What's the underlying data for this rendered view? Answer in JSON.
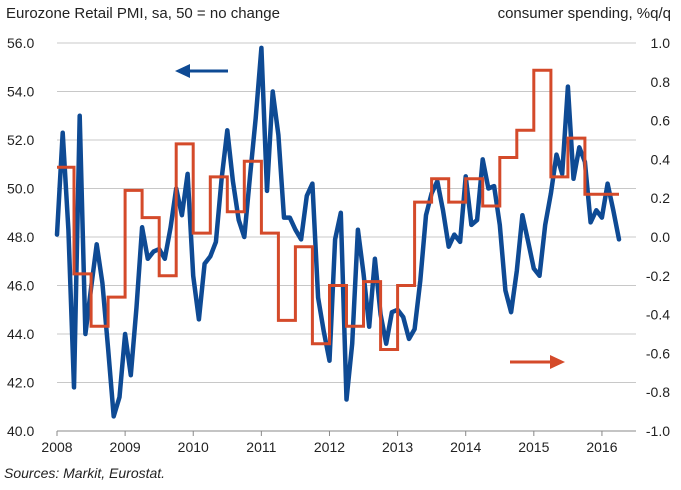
{
  "chart_data": {
    "type": "line",
    "title_left": "Eurozone Retail PMI, sa, 50 = no change",
    "title_right": "consumer spending, %q/q",
    "source": "Sources: Markit, Eurostat.",
    "x_ticks": [
      "2008",
      "2009",
      "2010",
      "2011",
      "2012",
      "2013",
      "2014",
      "2015",
      "2016"
    ],
    "xlim": [
      2008,
      2016.5
    ],
    "y_left": {
      "lim": [
        40,
        56
      ],
      "ticks": [
        40,
        42,
        44,
        46,
        48,
        50,
        52,
        54,
        56
      ],
      "tick_labels": [
        "40.0",
        "42.0",
        "44.0",
        "46.0",
        "48.0",
        "50.0",
        "52.0",
        "54.0",
        "56.0"
      ]
    },
    "y_right": {
      "lim": [
        -1.0,
        1.0
      ],
      "ticks": [
        -1.0,
        -0.8,
        -0.6,
        -0.4,
        -0.2,
        0.0,
        0.2,
        0.4,
        0.6,
        0.8,
        1.0
      ],
      "tick_labels": [
        "-1.0",
        "-0.8",
        "-0.6",
        "-0.4",
        "-0.2",
        "0.0",
        "0.2",
        "0.4",
        "0.6",
        "0.8",
        "1.0"
      ]
    },
    "series": [
      {
        "name": "Eurozone Retail PMI",
        "axis": "left",
        "color": "#0e4a94",
        "x": [
          2008.0,
          2008.083,
          2008.167,
          2008.25,
          2008.333,
          2008.417,
          2008.5,
          2008.583,
          2008.667,
          2008.75,
          2008.833,
          2008.917,
          2009.0,
          2009.083,
          2009.167,
          2009.25,
          2009.333,
          2009.417,
          2009.5,
          2009.583,
          2009.667,
          2009.75,
          2009.833,
          2009.917,
          2010.0,
          2010.083,
          2010.167,
          2010.25,
          2010.333,
          2010.417,
          2010.5,
          2010.583,
          2010.667,
          2010.75,
          2010.833,
          2010.917,
          2011.0,
          2011.083,
          2011.167,
          2011.25,
          2011.333,
          2011.417,
          2011.5,
          2011.583,
          2011.667,
          2011.75,
          2011.833,
          2011.917,
          2012.0,
          2012.083,
          2012.167,
          2012.25,
          2012.333,
          2012.417,
          2012.5,
          2012.583,
          2012.667,
          2012.75,
          2012.833,
          2012.917,
          2013.0,
          2013.083,
          2013.167,
          2013.25,
          2013.333,
          2013.417,
          2013.5,
          2013.583,
          2013.667,
          2013.75,
          2013.833,
          2013.917,
          2014.0,
          2014.083,
          2014.167,
          2014.25,
          2014.333,
          2014.417,
          2014.5,
          2014.583,
          2014.667,
          2014.75,
          2014.833,
          2014.917,
          2015.0,
          2015.083,
          2015.167,
          2015.25,
          2015.333,
          2015.417,
          2015.5,
          2015.583,
          2015.667,
          2015.75,
          2015.833,
          2015.917,
          2016.0,
          2016.083,
          2016.167,
          2016.25
        ],
        "values": [
          48.1,
          52.3,
          48.3,
          41.8,
          53.0,
          44.0,
          45.9,
          47.7,
          46.1,
          43.4,
          40.6,
          41.4,
          44.0,
          42.3,
          45.1,
          48.4,
          47.1,
          47.4,
          47.5,
          47.1,
          48.4,
          50.0,
          48.9,
          50.6,
          46.4,
          44.6,
          46.9,
          47.2,
          47.8,
          50.4,
          52.4,
          50.3,
          48.7,
          48.0,
          50.5,
          52.9,
          55.8,
          49.9,
          54.0,
          52.2,
          48.8,
          48.8,
          48.3,
          47.9,
          49.7,
          50.2,
          45.5,
          44.1,
          42.9,
          47.9,
          49.0,
          41.3,
          43.6,
          48.3,
          46.5,
          44.3,
          47.1,
          44.8,
          43.6,
          44.9,
          45.0,
          44.7,
          43.8,
          44.2,
          46.2,
          48.9,
          49.8,
          50.3,
          49.1,
          47.6,
          48.1,
          47.8,
          50.5,
          48.5,
          48.7,
          51.2,
          50.0,
          50.1,
          48.5,
          45.8,
          44.9,
          46.6,
          48.9,
          47.8,
          46.7,
          46.4,
          48.5,
          49.8,
          51.4,
          50.6,
          54.2,
          50.4,
          51.7,
          51.1,
          48.6,
          49.1,
          48.8,
          50.2,
          49.1,
          47.9
        ]
      },
      {
        "name": "Consumer spending, %q/q",
        "axis": "right",
        "color": "#d44a2a",
        "x": [
          2008.0,
          2008.25,
          2008.5,
          2008.75,
          2009.0,
          2009.25,
          2009.5,
          2009.75,
          2010.0,
          2010.25,
          2010.5,
          2010.75,
          2011.0,
          2011.25,
          2011.5,
          2011.75,
          2012.0,
          2012.25,
          2012.5,
          2012.75,
          2013.0,
          2013.25,
          2013.5,
          2013.75,
          2014.0,
          2014.25,
          2014.5,
          2014.75,
          2015.0,
          2015.25,
          2015.5,
          2015.75,
          2016.0
        ],
        "values": [
          0.36,
          -0.19,
          -0.46,
          -0.31,
          0.24,
          0.1,
          -0.2,
          0.48,
          0.02,
          0.31,
          0.13,
          0.39,
          0.02,
          -0.43,
          -0.05,
          -0.55,
          -0.25,
          -0.46,
          -0.23,
          -0.58,
          -0.25,
          0.18,
          0.3,
          0.18,
          0.3,
          0.16,
          0.41,
          0.55,
          0.86,
          0.31,
          0.51,
          0.22,
          0.22
        ]
      }
    ],
    "annotations": [
      "left arrow: PMI uses left axis",
      "right arrow: consumer spending uses right axis"
    ]
  }
}
